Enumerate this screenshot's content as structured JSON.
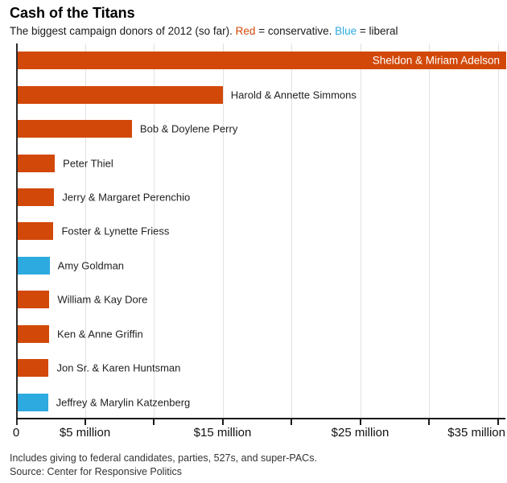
{
  "page": {
    "title": "Cash of the Titans",
    "subtitle": {
      "part1": "The biggest campaign donors of 2012 (so far). ",
      "red_word": "Red",
      "part2": " = conservative. ",
      "blue_word": "Blue",
      "part3": " = liberal"
    },
    "footnote": "Includes giving to federal candidates, parties, 527s, and super-PACs.",
    "source": "Source: Center for Responsive Politics"
  },
  "colors": {
    "conservative": "#D24808",
    "liberal": "#2DAAE0",
    "inside_bar_label": "#FFFFFF"
  },
  "chart_data": {
    "type": "bar",
    "orientation": "horizontal",
    "title": "Cash of the Titans",
    "subtitle": "The biggest campaign donors of 2012 (so far). Red = conservative. Blue = liberal",
    "unit": "million USD",
    "xlim": [
      0,
      35.6
    ],
    "grid": true,
    "grid_interval": 5,
    "legend": {
      "Red": "conservative",
      "Blue": "liberal"
    },
    "xticks": [
      {
        "value": 0,
        "label": "0"
      },
      {
        "value": 5,
        "label": "$5 million"
      },
      {
        "value": 15,
        "label": "$15 million"
      },
      {
        "value": 25,
        "label": "$25 million"
      },
      {
        "value": 35,
        "label": "$35 million"
      }
    ],
    "bars": [
      {
        "name": "Sheldon & Miriam Adelson",
        "value": 35.5,
        "party": "conservative",
        "label_position": "inside"
      },
      {
        "name": "Harold & Annette Simmons",
        "value": 14.9,
        "party": "conservative",
        "label_position": "outside"
      },
      {
        "name": "Bob & Doylene Perry",
        "value": 8.3,
        "party": "conservative",
        "label_position": "outside"
      },
      {
        "name": "Peter Thiel",
        "value": 2.7,
        "party": "conservative",
        "label_position": "outside"
      },
      {
        "name": "Jerry & Margaret Perenchio",
        "value": 2.65,
        "party": "conservative",
        "label_position": "outside"
      },
      {
        "name": "Foster & Lynette Friess",
        "value": 2.6,
        "party": "conservative",
        "label_position": "outside"
      },
      {
        "name": "Amy Goldman",
        "value": 2.32,
        "party": "liberal",
        "label_position": "outside"
      },
      {
        "name": "William & Kay Dore",
        "value": 2.3,
        "party": "conservative",
        "label_position": "outside"
      },
      {
        "name": "Ken & Anne Griffin",
        "value": 2.28,
        "party": "conservative",
        "label_position": "outside"
      },
      {
        "name": "Jon Sr. & Karen Huntsman",
        "value": 2.25,
        "party": "conservative",
        "label_position": "outside"
      },
      {
        "name": "Jeffrey & Marylin Katzenberg",
        "value": 2.2,
        "party": "liberal",
        "label_position": "outside"
      }
    ]
  }
}
